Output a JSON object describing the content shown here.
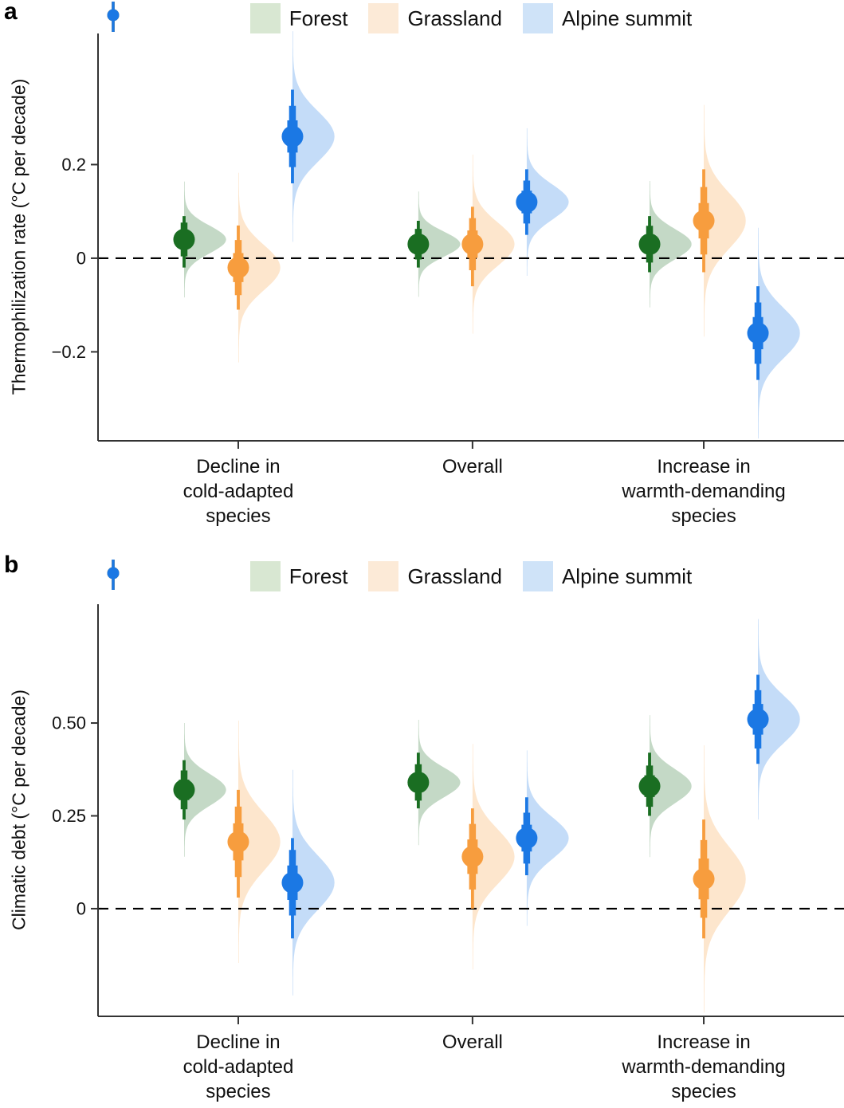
{
  "figure": {
    "panel_a_label": "a",
    "panel_b_label": "b"
  },
  "legend": {
    "items": [
      {
        "label": "Forest",
        "color": "#1a6e22",
        "bg": "#d8e7d2"
      },
      {
        "label": "Grassland",
        "color": "#f79d3e",
        "bg": "#fcead7"
      },
      {
        "label": "Alpine summit",
        "color": "#1b78e4",
        "bg": "#cfe3f8"
      }
    ]
  },
  "chart_data": [
    {
      "panel": "a",
      "type": "interval",
      "style": "half-violin with median dot and nested 50/80/95% credible intervals",
      "ylabel": "Thermophilization rate (°C per decade)",
      "categories": [
        "Decline in\ncold-adapted\nspecies",
        "Overall",
        "Increase in\nwarmth-demanding\nspecies"
      ],
      "ylim": [
        -0.39,
        0.48
      ],
      "yticks": [
        {
          "value": 0.2,
          "label": "0.2"
        },
        {
          "value": 0,
          "label": "0"
        },
        {
          "value": -0.2,
          "label": "−0.2"
        }
      ],
      "zero_line": 0,
      "grid": false,
      "legend_position": "top",
      "series": [
        {
          "name": "Forest",
          "color": "#1a6e22",
          "medians": [
            0.04,
            0.03,
            0.03
          ],
          "ci95": [
            [
              -0.02,
              0.09
            ],
            [
              -0.02,
              0.08
            ],
            [
              -0.03,
              0.09
            ]
          ]
        },
        {
          "name": "Grassland",
          "color": "#f79d3e",
          "medians": [
            -0.02,
            0.03,
            0.08
          ],
          "ci95": [
            [
              -0.11,
              0.07
            ],
            [
              -0.06,
              0.11
            ],
            [
              -0.03,
              0.19
            ]
          ]
        },
        {
          "name": "Alpine summit",
          "color": "#1b78e4",
          "medians": [
            0.26,
            0.12,
            -0.16
          ],
          "ci95": [
            [
              0.16,
              0.36
            ],
            [
              0.05,
              0.19
            ],
            [
              -0.26,
              -0.06
            ]
          ]
        }
      ]
    },
    {
      "panel": "b",
      "type": "interval",
      "style": "half-violin with median dot and nested 50/80/95% credible intervals",
      "ylabel": "Climatic debt (°C per decade)",
      "categories": [
        "Decline in\ncold-adapted\nspecies",
        "Overall",
        "Increase in\nwarmth-demanding\nspecies"
      ],
      "ylim": [
        -0.29,
        0.82
      ],
      "yticks": [
        {
          "value": 0.5,
          "label": "0.50"
        },
        {
          "value": 0.25,
          "label": "0.25"
        },
        {
          "value": 0,
          "label": "0"
        }
      ],
      "zero_line": 0,
      "grid": false,
      "legend_position": "top",
      "series": [
        {
          "name": "Forest",
          "color": "#1a6e22",
          "medians": [
            0.32,
            0.34,
            0.33
          ],
          "ci95": [
            [
              0.24,
              0.4
            ],
            [
              0.27,
              0.42
            ],
            [
              0.25,
              0.42
            ]
          ]
        },
        {
          "name": "Grassland",
          "color": "#f79d3e",
          "medians": [
            0.18,
            0.14,
            0.08
          ],
          "ci95": [
            [
              0.03,
              0.32
            ],
            [
              0.0,
              0.27
            ],
            [
              -0.08,
              0.24
            ]
          ]
        },
        {
          "name": "Alpine summit",
          "color": "#1b78e4",
          "medians": [
            0.07,
            0.19,
            0.51
          ],
          "ci95": [
            [
              -0.08,
              0.19
            ],
            [
              0.09,
              0.3
            ],
            [
              0.39,
              0.63
            ]
          ]
        }
      ]
    }
  ]
}
